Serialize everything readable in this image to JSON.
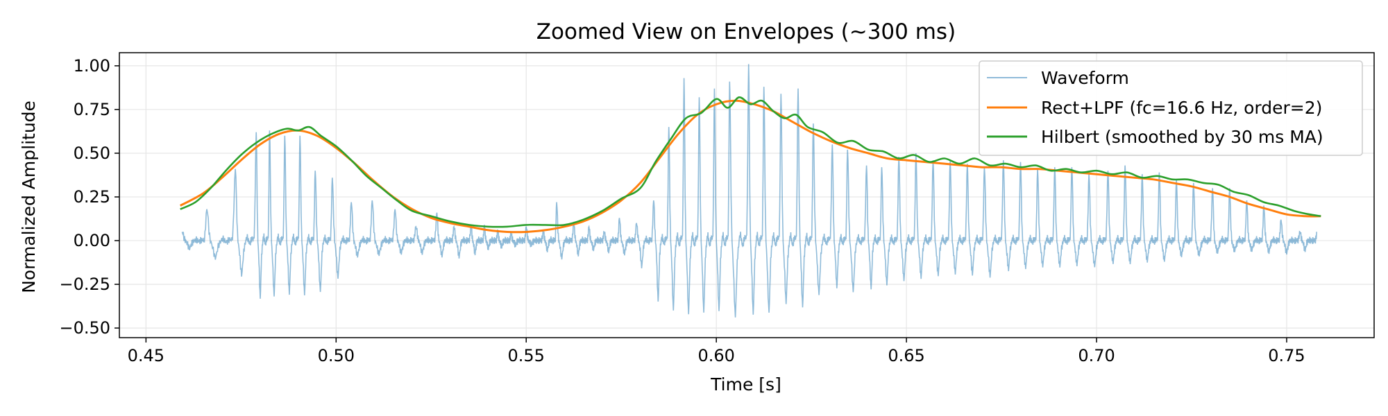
{
  "chart_data": {
    "type": "line",
    "title": "Zoomed View on Envelopes (~300 ms)",
    "xlabel": "Time [s]",
    "ylabel": "Normalized Amplitude",
    "xlim": [
      0.443,
      0.773
    ],
    "ylim": [
      -0.555,
      1.075
    ],
    "xticks": [
      0.45,
      0.5,
      0.55,
      0.6,
      0.65,
      0.7,
      0.75
    ],
    "xtick_labels": [
      "0.45",
      "0.50",
      "0.55",
      "0.60",
      "0.65",
      "0.70",
      "0.75"
    ],
    "yticks": [
      -0.5,
      -0.25,
      0.0,
      0.25,
      0.5,
      0.75,
      1.0
    ],
    "ytick_labels": [
      "−0.50",
      "−0.25",
      "0.00",
      "0.25",
      "0.50",
      "0.75",
      "1.00"
    ],
    "grid": true,
    "legend_position": "top-right",
    "waveform_peaks": {
      "note_free": true,
      "t": [
        0.4595,
        0.466,
        0.4735,
        0.479,
        0.4825,
        0.4865,
        0.4905,
        0.4945,
        0.499,
        0.504,
        0.5095,
        0.5155,
        0.521,
        0.5265,
        0.531,
        0.5355,
        0.539,
        0.5425,
        0.546,
        0.55,
        0.5545,
        0.558,
        0.5625,
        0.5665,
        0.5705,
        0.5745,
        0.579,
        0.5835,
        0.5875,
        0.5915,
        0.5955,
        0.5995,
        0.6035,
        0.6085,
        0.6125,
        0.617,
        0.6215,
        0.6255,
        0.6305,
        0.6345,
        0.6395,
        0.6435,
        0.648,
        0.6525,
        0.657,
        0.6615,
        0.666,
        0.6705,
        0.6755,
        0.68,
        0.6845,
        0.689,
        0.6935,
        0.698,
        0.703,
        0.7075,
        0.712,
        0.7165,
        0.721,
        0.7255,
        0.7305,
        0.735,
        0.7395,
        0.744,
        0.7485,
        0.7535,
        0.758
      ],
      "max": [
        0.05,
        0.18,
        0.41,
        0.62,
        0.63,
        0.6,
        0.6,
        0.4,
        0.36,
        0.22,
        0.23,
        0.18,
        0.08,
        0.16,
        0.08,
        0.09,
        0.09,
        0.06,
        0.04,
        0.08,
        0.05,
        0.22,
        0.1,
        0.08,
        0.05,
        0.13,
        0.1,
        0.23,
        0.65,
        0.93,
        0.82,
        0.87,
        0.91,
        1.01,
        0.88,
        0.84,
        0.87,
        0.67,
        0.55,
        0.52,
        0.43,
        0.42,
        0.48,
        0.5,
        0.46,
        0.46,
        0.44,
        0.42,
        0.46,
        0.45,
        0.41,
        0.42,
        0.42,
        0.38,
        0.4,
        0.43,
        0.38,
        0.39,
        0.35,
        0.33,
        0.3,
        0.3,
        0.23,
        0.2,
        0.12,
        0.05,
        0.05
      ],
      "min": [
        -0.03,
        -0.09,
        -0.16,
        -0.36,
        -0.35,
        -0.33,
        -0.34,
        -0.32,
        -0.28,
        -0.1,
        -0.09,
        -0.08,
        -0.07,
        -0.09,
        -0.1,
        -0.09,
        -0.05,
        -0.04,
        -0.03,
        -0.02,
        -0.04,
        -0.11,
        -0.1,
        -0.05,
        -0.06,
        -0.08,
        -0.08,
        -0.34,
        -0.42,
        -0.46,
        -0.46,
        -0.42,
        -0.49,
        -0.46,
        -0.48,
        -0.38,
        -0.44,
        -0.36,
        -0.28,
        -0.32,
        -0.3,
        -0.28,
        -0.25,
        -0.24,
        -0.22,
        -0.21,
        -0.2,
        -0.24,
        -0.19,
        -0.18,
        -0.16,
        -0.17,
        -0.15,
        -0.17,
        -0.14,
        -0.15,
        -0.13,
        -0.14,
        -0.1,
        -0.1,
        -0.08,
        -0.07,
        -0.06,
        -0.07,
        -0.08,
        -0.06,
        -0.05
      ]
    },
    "series": [
      {
        "name": "Waveform",
        "color": "#1f77b4",
        "opacity": 0.5,
        "style": "thin"
      },
      {
        "name": "Rect+LPF (fc=16.6 Hz, order=2)",
        "color": "#ff7f0e",
        "x": [
          0.459,
          0.465,
          0.47,
          0.475,
          0.48,
          0.485,
          0.49,
          0.495,
          0.5,
          0.505,
          0.51,
          0.515,
          0.52,
          0.525,
          0.53,
          0.535,
          0.54,
          0.545,
          0.55,
          0.555,
          0.56,
          0.565,
          0.57,
          0.575,
          0.58,
          0.585,
          0.59,
          0.595,
          0.6,
          0.605,
          0.61,
          0.615,
          0.62,
          0.625,
          0.63,
          0.635,
          0.64,
          0.645,
          0.65,
          0.655,
          0.66,
          0.665,
          0.67,
          0.675,
          0.68,
          0.685,
          0.69,
          0.695,
          0.7,
          0.705,
          0.71,
          0.715,
          0.72,
          0.725,
          0.73,
          0.735,
          0.74,
          0.745,
          0.75,
          0.755,
          0.759
        ],
        "values": [
          0.2,
          0.27,
          0.36,
          0.46,
          0.55,
          0.61,
          0.63,
          0.6,
          0.53,
          0.44,
          0.34,
          0.25,
          0.18,
          0.13,
          0.1,
          0.08,
          0.06,
          0.05,
          0.05,
          0.06,
          0.08,
          0.11,
          0.16,
          0.23,
          0.33,
          0.47,
          0.61,
          0.72,
          0.78,
          0.8,
          0.78,
          0.74,
          0.68,
          0.62,
          0.57,
          0.53,
          0.5,
          0.47,
          0.46,
          0.45,
          0.44,
          0.43,
          0.42,
          0.42,
          0.41,
          0.41,
          0.4,
          0.39,
          0.38,
          0.37,
          0.36,
          0.35,
          0.33,
          0.31,
          0.28,
          0.25,
          0.21,
          0.18,
          0.15,
          0.14,
          0.14
        ]
      },
      {
        "name": "Hilbert (smoothed by 30 ms MA)",
        "color": "#2ca02c",
        "x": [
          0.459,
          0.463,
          0.467,
          0.471,
          0.475,
          0.479,
          0.483,
          0.487,
          0.49,
          0.493,
          0.496,
          0.5,
          0.504,
          0.508,
          0.512,
          0.516,
          0.52,
          0.525,
          0.53,
          0.535,
          0.54,
          0.545,
          0.55,
          0.555,
          0.56,
          0.565,
          0.57,
          0.575,
          0.58,
          0.584,
          0.588,
          0.592,
          0.596,
          0.6,
          0.603,
          0.606,
          0.609,
          0.612,
          0.615,
          0.618,
          0.621,
          0.624,
          0.628,
          0.632,
          0.636,
          0.64,
          0.644,
          0.648,
          0.652,
          0.656,
          0.66,
          0.664,
          0.668,
          0.672,
          0.676,
          0.68,
          0.684,
          0.688,
          0.692,
          0.696,
          0.7,
          0.704,
          0.708,
          0.712,
          0.716,
          0.72,
          0.724,
          0.728,
          0.732,
          0.736,
          0.74,
          0.744,
          0.748,
          0.752,
          0.756,
          0.759
        ],
        "values": [
          0.18,
          0.22,
          0.3,
          0.4,
          0.49,
          0.56,
          0.61,
          0.64,
          0.63,
          0.65,
          0.6,
          0.54,
          0.46,
          0.37,
          0.3,
          0.23,
          0.17,
          0.14,
          0.11,
          0.09,
          0.08,
          0.08,
          0.09,
          0.09,
          0.09,
          0.12,
          0.17,
          0.24,
          0.3,
          0.45,
          0.58,
          0.7,
          0.73,
          0.81,
          0.76,
          0.82,
          0.78,
          0.8,
          0.74,
          0.7,
          0.72,
          0.65,
          0.62,
          0.56,
          0.57,
          0.52,
          0.51,
          0.47,
          0.49,
          0.45,
          0.47,
          0.44,
          0.47,
          0.43,
          0.44,
          0.42,
          0.43,
          0.4,
          0.41,
          0.39,
          0.4,
          0.38,
          0.39,
          0.36,
          0.37,
          0.35,
          0.35,
          0.33,
          0.32,
          0.28,
          0.26,
          0.22,
          0.2,
          0.17,
          0.15,
          0.14
        ]
      }
    ]
  }
}
